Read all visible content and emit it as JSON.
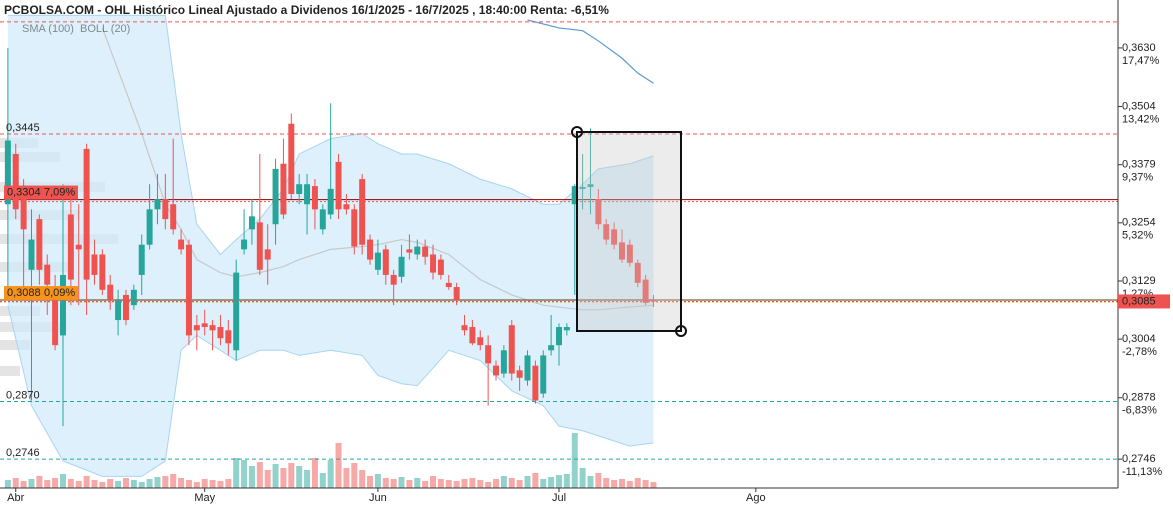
{
  "chart_data": {
    "type": "candlestick",
    "title": "PCBOLSA.COM - OHL Histórico Lineal Ajustado a Dividenos 16/1/2025 - 16/7/2025 , 18:40:00 Renta: -6,51%",
    "up_color": "#26a69a",
    "down_color": "#ef5350",
    "xlim": [
      -1,
      141
    ],
    "xticks": [
      {
        "value": 1,
        "label": "Abr"
      },
      {
        "value": 25,
        "label": "May"
      },
      {
        "value": 47,
        "label": "Jun"
      },
      {
        "value": 70,
        "label": "Jul"
      },
      {
        "value": 95,
        "label": "Ago"
      }
    ],
    "ylim": [
      0.2684,
      0.369
    ],
    "yticks": [
      {
        "value": 0.363,
        "label": "0,3630"
      },
      {
        "value": 0.3504,
        "label": "0,3504"
      },
      {
        "value": 0.3379,
        "label": "0,3379"
      },
      {
        "value": 0.3254,
        "label": "0,3254"
      },
      {
        "value": 0.3129,
        "label": "0,3129"
      },
      {
        "value": 0.3004,
        "label": "0,3004"
      },
      {
        "value": 0.2878,
        "label": "0,2878"
      },
      {
        "value": 0.2746,
        "label": "0,2746"
      }
    ],
    "ytick_changes": [
      "17,47%",
      "13,42%",
      "9,37%",
      "5,32%",
      "1,27%",
      "-2,78%",
      "-6,83%",
      "-11,13%"
    ],
    "candles": [
      [
        0.3294,
        0.363,
        0.3099,
        0.3431
      ],
      [
        0.3402,
        0.3424,
        0.3262,
        0.3283
      ],
      [
        0.3327,
        0.3348,
        0.311,
        0.324
      ],
      [
        0.3153,
        0.3283,
        0.2872,
        0.3218
      ],
      [
        0.3262,
        0.3272,
        0.3121,
        0.3153
      ],
      [
        0.3164,
        0.3186,
        0.3056,
        0.3121
      ],
      [
        0.3099,
        0.3142,
        0.298,
        0.2991
      ],
      [
        0.3012,
        0.3337,
        0.2817,
        0.3142
      ],
      [
        0.3272,
        0.3316,
        0.3077,
        0.3132
      ],
      [
        0.3207,
        0.3294,
        0.3077,
        0.3197
      ],
      [
        0.3413,
        0.3424,
        0.3056,
        0.3132
      ],
      [
        0.3186,
        0.3218,
        0.3121,
        0.3142
      ],
      [
        0.3186,
        0.3197,
        0.3099,
        0.311
      ],
      [
        0.3121,
        0.3142,
        0.3067,
        0.3088
      ],
      [
        0.3045,
        0.311,
        0.3012,
        0.3088
      ],
      [
        0.3099,
        0.311,
        0.3034,
        0.3045
      ],
      [
        0.3077,
        0.3121,
        0.3067,
        0.311
      ],
      [
        0.3142,
        0.3229,
        0.3099,
        0.3207
      ],
      [
        0.3207,
        0.3337,
        0.3197,
        0.3283
      ],
      [
        0.3283,
        0.3359,
        0.3251,
        0.3305
      ],
      [
        0.3305,
        0.3359,
        0.324,
        0.3262
      ],
      [
        0.3294,
        0.3435,
        0.3229,
        0.324
      ],
      [
        0.3218,
        0.324,
        0.3186,
        0.3197
      ],
      [
        0.3207,
        0.3218,
        0.2991,
        0.3012
      ],
      [
        0.3034,
        0.3056,
        0.298,
        0.3023
      ],
      [
        0.3038,
        0.3067,
        0.3012,
        0.303
      ],
      [
        0.3034,
        0.3045,
        0.298,
        0.3023
      ],
      [
        0.303,
        0.3056,
        0.2991,
        0.3006
      ],
      [
        0.3023,
        0.3045,
        0.2969,
        0.2995
      ],
      [
        0.298,
        0.3175,
        0.2958,
        0.3147
      ],
      [
        0.3197,
        0.3283,
        0.3186,
        0.3218
      ],
      [
        0.324,
        0.3305,
        0.3207,
        0.3268
      ],
      [
        0.3255,
        0.3402,
        0.3142,
        0.3153
      ],
      [
        0.3197,
        0.3251,
        0.3121,
        0.3175
      ],
      [
        0.3251,
        0.3392,
        0.3207,
        0.337
      ],
      [
        0.3381,
        0.3435,
        0.3262,
        0.3272
      ],
      [
        0.3467,
        0.3489,
        0.3305,
        0.3316
      ],
      [
        0.3316,
        0.3359,
        0.3294,
        0.3337
      ],
      [
        0.3294,
        0.3359,
        0.3229,
        0.3337
      ],
      [
        0.3333,
        0.3348,
        0.324,
        0.3283
      ],
      [
        0.324,
        0.3294,
        0.3229,
        0.3283
      ],
      [
        0.3272,
        0.3511,
        0.3262,
        0.3327
      ],
      [
        0.3385,
        0.3402,
        0.3262,
        0.3283
      ],
      [
        0.3294,
        0.3316,
        0.3272,
        0.3283
      ],
      [
        0.3283,
        0.3294,
        0.3186,
        0.3203
      ],
      [
        0.3348,
        0.3359,
        0.3186,
        0.3207
      ],
      [
        0.3218,
        0.3229,
        0.3164,
        0.3175
      ],
      [
        0.3153,
        0.3218,
        0.3142,
        0.319
      ],
      [
        0.3197,
        0.3207,
        0.3121,
        0.3142
      ],
      [
        0.3142,
        0.3153,
        0.3077,
        0.3121
      ],
      [
        0.3138,
        0.3207,
        0.3125,
        0.3181
      ],
      [
        0.3197,
        0.3229,
        0.3175,
        0.319
      ],
      [
        0.3186,
        0.3218,
        0.3175,
        0.3203
      ],
      [
        0.3203,
        0.3218,
        0.3164,
        0.3181
      ],
      [
        0.3186,
        0.3207,
        0.3132,
        0.3147
      ],
      [
        0.3175,
        0.3186,
        0.3132,
        0.3142
      ],
      [
        0.3125,
        0.3142,
        0.311,
        0.3116
      ],
      [
        0.3116,
        0.3125,
        0.3077,
        0.3088
      ],
      [
        0.3034,
        0.3056,
        0.3012,
        0.3023
      ],
      [
        0.303,
        0.3045,
        0.2991,
        0.2995
      ],
      [
        0.3008,
        0.3023,
        0.298,
        0.2991
      ],
      [
        0.2991,
        0.3012,
        0.2861,
        0.2952
      ],
      [
        0.2947,
        0.2958,
        0.2915,
        0.2926
      ],
      [
        0.293,
        0.2991,
        0.2921,
        0.298
      ],
      [
        0.3034,
        0.3045,
        0.2915,
        0.293
      ],
      [
        0.2937,
        0.2947,
        0.2893,
        0.2921
      ],
      [
        0.2915,
        0.298,
        0.2904,
        0.2969
      ],
      [
        0.2947,
        0.2958,
        0.2865,
        0.2872
      ],
      [
        0.2887,
        0.298,
        0.2878,
        0.2969
      ],
      [
        0.298,
        0.3056,
        0.2969,
        0.2991
      ],
      [
        0.2991,
        0.3038,
        0.2947,
        0.303
      ],
      [
        0.3023,
        0.3038,
        0.3012,
        0.303
      ],
      [
        0.3294,
        0.3337,
        0.3099,
        0.3333
      ],
      [
        0.3327,
        0.3402,
        0.3283,
        0.3331
      ],
      [
        0.3331,
        0.3457,
        0.3272,
        0.3337
      ],
      [
        0.3305,
        0.3327,
        0.324,
        0.3251
      ],
      [
        0.3251,
        0.3262,
        0.3207,
        0.3218
      ],
      [
        0.324,
        0.3255,
        0.3197,
        0.3207
      ],
      [
        0.3212,
        0.324,
        0.3168,
        0.3175
      ],
      [
        0.3207,
        0.3218,
        0.316,
        0.3168
      ],
      [
        0.3168,
        0.3175,
        0.3116,
        0.3125
      ],
      [
        0.3132,
        0.3142,
        0.3077,
        0.3082
      ],
      [
        0.3088,
        0.3099,
        0.3073,
        0.3085
      ]
    ],
    "volume": [
      8,
      10,
      7,
      9,
      12,
      8,
      10,
      14,
      9,
      7,
      12,
      8,
      6,
      9,
      7,
      10,
      8,
      6,
      9,
      11,
      12,
      14,
      10,
      8,
      6,
      9,
      8,
      7,
      9,
      30,
      28,
      22,
      26,
      18,
      24,
      20,
      25,
      22,
      18,
      30,
      15,
      28,
      45,
      20,
      25,
      18,
      12,
      14,
      10,
      9,
      11,
      8,
      10,
      7,
      12,
      9,
      8,
      7,
      9,
      10,
      8,
      6,
      9,
      12,
      10,
      8,
      12,
      15,
      9,
      11,
      13,
      14,
      55,
      20,
      12,
      15,
      10,
      8,
      9,
      7,
      10,
      8,
      6
    ],
    "bollinger": {
      "name": "BOLL (20)",
      "color": "#c8c8c8",
      "fill": "#cfe9fb",
      "x": [
        0,
        3,
        7,
        12,
        17,
        20,
        22,
        24,
        27,
        29,
        32,
        35,
        37,
        41,
        45,
        47,
        50,
        52,
        56,
        60,
        64,
        68,
        70,
        73,
        75,
        79,
        82
      ],
      "upper": [
        0.37,
        0.37,
        0.37,
        0.37,
        0.37,
        0.37,
        0.3446,
        0.3251,
        0.3186,
        0.3218,
        0.3262,
        0.3327,
        0.3402,
        0.3435,
        0.3446,
        0.3424,
        0.3402,
        0.3402,
        0.3381,
        0.3348,
        0.3327,
        0.3294,
        0.3294,
        0.3337,
        0.337,
        0.3381,
        0.3398
      ],
      "middle": [
        null,
        null,
        null,
        0.3673,
        0.3446,
        0.3294,
        0.324,
        0.3175,
        0.3147,
        0.3138,
        0.3147,
        0.316,
        0.3175,
        0.3197,
        0.3203,
        0.3207,
        0.3218,
        0.3212,
        0.3186,
        0.3132,
        0.3099,
        0.3077,
        0.3073,
        0.3067,
        0.3067,
        0.3073,
        0.3077
      ],
      "lower": [
        0.3077,
        0.2861,
        0.2742,
        0.2709,
        0.2709,
        0.2742,
        0.298,
        0.3012,
        0.298,
        0.2958,
        0.298,
        0.298,
        0.2969,
        0.298,
        0.2969,
        0.2926,
        0.2908,
        0.2904,
        0.298,
        0.2958,
        0.2893,
        0.2861,
        0.2817,
        0.2807,
        0.2796,
        0.2774,
        0.2781
      ]
    },
    "sma": {
      "name": "SMA (100)",
      "color": "#5b9bd5",
      "x": [
        66,
        70,
        73,
        75,
        78,
        80,
        82
      ],
      "values": [
        0.369,
        0.3673,
        0.3667,
        0.3645,
        0.3608,
        0.3576,
        0.3554
      ]
    },
    "levels": [
      {
        "value": 0.3686,
        "color": "#ef5350"
      },
      {
        "value": 0.3445,
        "label": "0,3445",
        "color": "#ef5350"
      },
      {
        "value": 0.287,
        "label": "0,2870",
        "color": "#26a69a"
      },
      {
        "value": 0.2746,
        "label": "0,2746",
        "color": "#26a69a"
      }
    ],
    "price_tags": [
      {
        "value": 0.3304,
        "label": "0,3304",
        "change": "7,09%",
        "color": "#ef5350",
        "line": "#8b0000"
      },
      {
        "value": 0.3088,
        "label": "0,3088",
        "change": "0,09%",
        "color": "#f7931a",
        "line": "#5a3a00"
      }
    ],
    "last_price": {
      "value": 0.3085,
      "label": "0,3085",
      "color": "#ef5350"
    }
  }
}
